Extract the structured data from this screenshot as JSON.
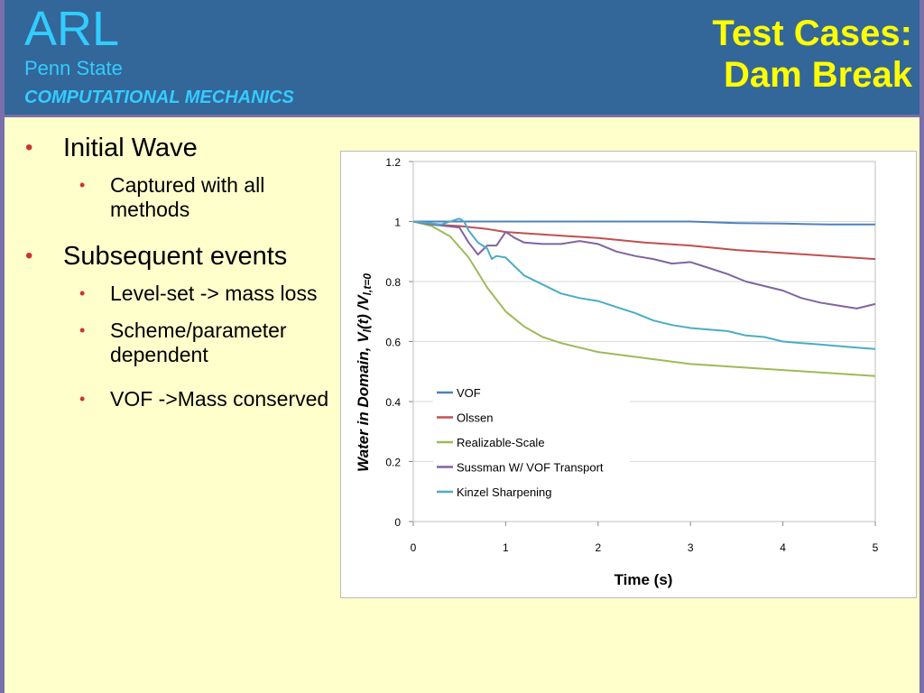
{
  "header": {
    "brand": "ARL",
    "subtitle1": "Penn State",
    "subtitle2": "COMPUTATIONAL MECHANICS",
    "title_line1": "Test Cases:",
    "title_line2": "Dam Break"
  },
  "bullets": {
    "b1": "Initial Wave",
    "b1_1": "Captured with all methods",
    "b2": "Subsequent events",
    "b2_1": "Level-set -> mass loss",
    "b2_2": "Scheme/parameter dependent",
    "b2_3": "VOF ->Mass conserved"
  },
  "colors": {
    "header_bg": "#336699",
    "page_bg": "#ffffcc",
    "brand": "#33ccff",
    "title": "#ffff00",
    "bullet": "#cc3333"
  },
  "chart_data": {
    "type": "line",
    "xlabel": "Time (s)",
    "ylabel_prefix": "Water in Domain, V",
    "ylabel_sub1": "l",
    "ylabel_mid": "(t) /V",
    "ylabel_sub2": "l,t=0",
    "xlim": [
      0,
      5
    ],
    "ylim": [
      0,
      1.2
    ],
    "xticks": [
      "0",
      "1",
      "2",
      "3",
      "4",
      "5"
    ],
    "yticks": [
      "0",
      "0.2",
      "0.4",
      "0.6",
      "0.8",
      "1",
      "1.2"
    ],
    "grid": "horizontal",
    "legend_position": "lower-left",
    "series": [
      {
        "name": "VOF",
        "color": "#4f81bd",
        "x": [
          0,
          0.5,
          1,
          2,
          3,
          3.5,
          4,
          4.5,
          5
        ],
        "y": [
          1.0,
          1.0,
          1.0,
          1.0,
          1.0,
          0.995,
          0.993,
          0.99,
          0.99
        ]
      },
      {
        "name": "Olssen",
        "color": "#c0504d",
        "x": [
          0,
          0.2,
          0.5,
          0.8,
          1,
          1.5,
          2,
          2.5,
          3,
          3.5,
          4,
          4.5,
          5
        ],
        "y": [
          1.0,
          0.99,
          0.985,
          0.975,
          0.965,
          0.955,
          0.945,
          0.93,
          0.92,
          0.905,
          0.895,
          0.885,
          0.875
        ]
      },
      {
        "name": "Realizable-Scale",
        "color": "#9bbb59",
        "x": [
          0,
          0.2,
          0.4,
          0.6,
          0.8,
          1.0,
          1.2,
          1.4,
          1.6,
          1.8,
          2.0,
          2.5,
          3.0,
          3.5,
          4.0,
          4.5,
          5.0
        ],
        "y": [
          1.0,
          0.985,
          0.95,
          0.88,
          0.78,
          0.7,
          0.65,
          0.615,
          0.595,
          0.58,
          0.565,
          0.545,
          0.525,
          0.515,
          0.505,
          0.495,
          0.485
        ]
      },
      {
        "name": "Sussman W/ VOF Transport",
        "color": "#8064a2",
        "x": [
          0,
          0.2,
          0.5,
          0.6,
          0.7,
          0.8,
          0.9,
          1.0,
          1.1,
          1.2,
          1.4,
          1.6,
          1.8,
          2.0,
          2.2,
          2.4,
          2.6,
          2.8,
          3.0,
          3.2,
          3.4,
          3.6,
          3.8,
          4.0,
          4.2,
          4.4,
          4.6,
          4.8,
          5.0
        ],
        "y": [
          1.0,
          0.99,
          0.98,
          0.93,
          0.89,
          0.92,
          0.92,
          0.965,
          0.945,
          0.93,
          0.925,
          0.925,
          0.935,
          0.925,
          0.9,
          0.885,
          0.875,
          0.86,
          0.865,
          0.845,
          0.825,
          0.8,
          0.785,
          0.77,
          0.745,
          0.73,
          0.72,
          0.71,
          0.725
        ]
      },
      {
        "name": "Kinzel Sharpening",
        "color": "#4bacc6",
        "x": [
          0,
          0.3,
          0.45,
          0.5,
          0.55,
          0.6,
          0.7,
          0.8,
          0.85,
          0.9,
          1.0,
          1.1,
          1.2,
          1.4,
          1.6,
          1.8,
          2.0,
          2.2,
          2.4,
          2.6,
          2.8,
          3.0,
          3.2,
          3.4,
          3.6,
          3.8,
          4.0,
          4.2,
          4.4,
          4.6,
          4.8,
          5.0
        ],
        "y": [
          1.0,
          0.99,
          1.005,
          1.01,
          1.0,
          0.97,
          0.93,
          0.91,
          0.875,
          0.885,
          0.88,
          0.85,
          0.82,
          0.79,
          0.76,
          0.745,
          0.735,
          0.715,
          0.695,
          0.67,
          0.655,
          0.645,
          0.64,
          0.635,
          0.62,
          0.615,
          0.6,
          0.595,
          0.59,
          0.585,
          0.58,
          0.575
        ]
      }
    ]
  }
}
